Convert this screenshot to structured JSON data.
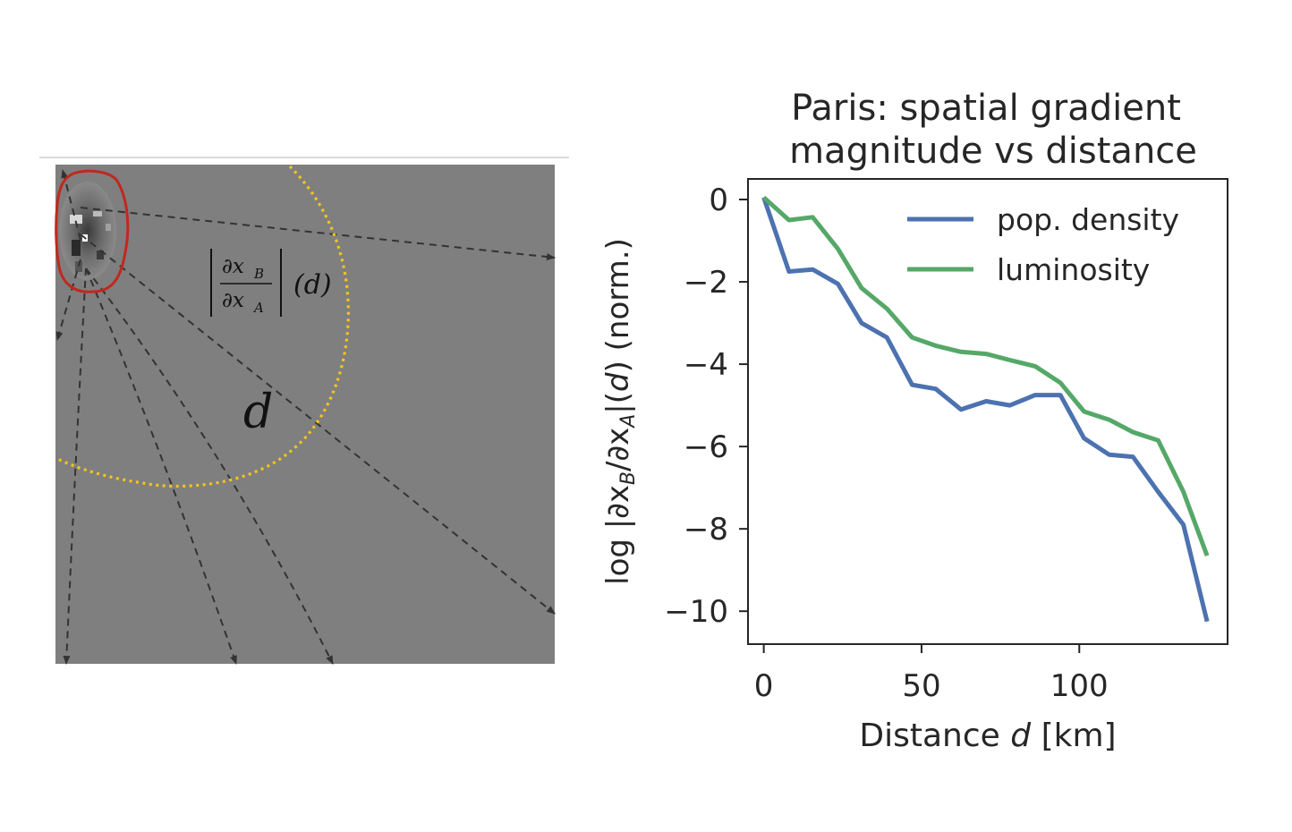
{
  "left_panel": {
    "formula_numerator": "∂x",
    "formula_numerator_sub": "B",
    "formula_denominator": "∂x",
    "formula_denominator_sub": "A",
    "formula_argument": "(d)",
    "distance_symbol": "d",
    "colors": {
      "background": "#7f7f7f",
      "boundary": "#c0281f",
      "radius": "#f5c518",
      "rays": "#333333"
    }
  },
  "chart_data": {
    "type": "line",
    "title_line1": "Paris: spatial gradient",
    "title_line2": "magnitude vs distance",
    "xlabel_prefix": "Distance ",
    "xlabel_var": "d",
    "xlabel_suffix": " [km]",
    "ylabel_prefix": "log |∂x",
    "ylabel_sub1": "B",
    "ylabel_mid": "/∂x",
    "ylabel_sub2": "A",
    "ylabel_mid2": "|(",
    "ylabel_var": "d",
    "ylabel_suffix": ") (norm.)",
    "xlim": [
      -5,
      147
    ],
    "ylim": [
      -10.8,
      0.5
    ],
    "x_ticks": [
      0,
      50,
      100
    ],
    "x_tick_labels": [
      "0",
      "50",
      "100"
    ],
    "y_ticks": [
      0,
      -2,
      -4,
      -6,
      -8,
      -10
    ],
    "y_tick_labels": [
      "0",
      "−2",
      "−4",
      "−6",
      "−8",
      "−10"
    ],
    "legend_position": "top-right",
    "grid": false,
    "series": [
      {
        "name": "pop. density",
        "color": "#4c72b0",
        "x": [
          0,
          8,
          15.5,
          23.5,
          31,
          39,
          47,
          54.5,
          62.5,
          70.5,
          78,
          86,
          94,
          101.5,
          109.5,
          117,
          125,
          133,
          140.5
        ],
        "y": [
          0.05,
          -1.75,
          -1.7,
          -2.05,
          -3.0,
          -3.35,
          -4.5,
          -4.6,
          -5.1,
          -4.9,
          -5.0,
          -4.75,
          -4.75,
          -5.8,
          -6.2,
          -6.25,
          -7.1,
          -7.9,
          -10.25
        ]
      },
      {
        "name": "luminosity",
        "color": "#55a868",
        "x": [
          0,
          8,
          15.5,
          23.5,
          31,
          39,
          47,
          54.5,
          62.5,
          70.5,
          78,
          86,
          94,
          101.5,
          109.5,
          117,
          125,
          133,
          140.5
        ],
        "y": [
          0.05,
          -0.5,
          -0.43,
          -1.2,
          -2.15,
          -2.65,
          -3.35,
          -3.55,
          -3.7,
          -3.75,
          -3.9,
          -4.05,
          -4.45,
          -5.15,
          -5.35,
          -5.65,
          -5.85,
          -7.1,
          -8.65
        ]
      }
    ]
  }
}
